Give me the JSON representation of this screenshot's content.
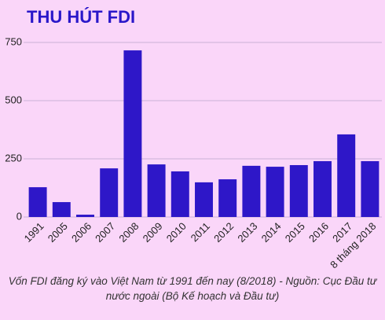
{
  "chart_data": {
    "type": "bar",
    "title": "THU HÚT FDI",
    "categories": [
      "1991",
      "2005",
      "2006",
      "2007",
      "2008",
      "2009",
      "2010",
      "2011",
      "2012",
      "2013",
      "2014",
      "2015",
      "2016",
      "2017",
      "8 tháng 2018"
    ],
    "values": [
      128,
      64,
      10,
      209,
      716,
      226,
      196,
      149,
      162,
      220,
      216,
      223,
      240,
      355,
      240
    ],
    "color": "#2e17c8",
    "ylim": [
      0,
      750
    ],
    "yticks": [
      0,
      250,
      500,
      750
    ],
    "grid": true,
    "caption": "Vốn FDI đăng ký vào Việt Nam từ 1991 đến nay (8/2018) - Nguồn: Cục Đầu tư nước ngoài (Bộ Kế hoạch và Đầu tư)"
  }
}
